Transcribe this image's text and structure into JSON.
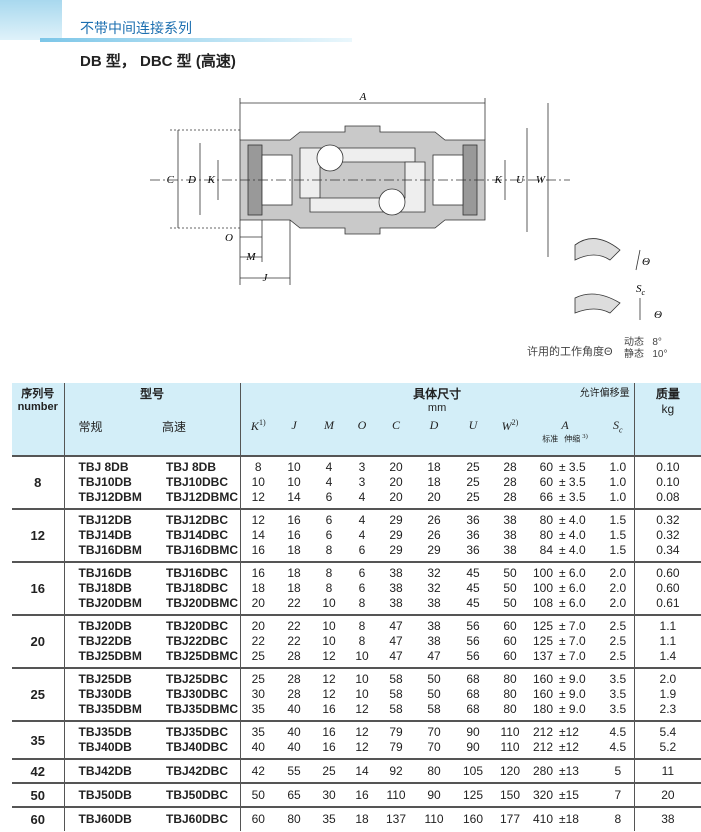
{
  "header": {
    "category": "不带中间连接系列",
    "title": "DB 型， DBC 型 (高速)"
  },
  "diagram": {
    "a": "A",
    "c": "C",
    "d": "D",
    "k_left": "K",
    "k_right": "K",
    "u": "U",
    "w": "W",
    "o": "O",
    "m": "M",
    "j": "J"
  },
  "angle": {
    "theta_1": "Θ",
    "theta_2": "Θ",
    "s": "S",
    "s_sub": "c",
    "caption": "许用的工作角度Θ",
    "dynamic": "动态",
    "dynamic_value": "8°",
    "static": "静态",
    "static_value": "10°"
  },
  "table": {
    "head": {
      "serial": "序列号",
      "serial_en": "number",
      "model": "型号",
      "regular": "常规",
      "high_speed": "高速",
      "dimensions": "具体尺寸",
      "unit": "mm",
      "allowance": "允许偏移量",
      "mass": "质量",
      "mass_unit": "kg",
      "k": "K",
      "k_note": "1)",
      "j": "J",
      "m": "M",
      "o": "O",
      "c": "C",
      "d": "D",
      "u": "U",
      "w": "W",
      "w_note": "2)",
      "a": "A",
      "a_standard": "标准",
      "a_stretch": "伸缩",
      "a_note": "3)",
      "s": "S",
      "s_sub": "c"
    },
    "groups": [
      {
        "number": "8",
        "rows": [
          [
            "TBJ  8DB",
            "TBJ  8DB",
            "8",
            "10",
            "4",
            "3",
            "20",
            "18",
            "25",
            "28",
            "60",
            "± 3.5",
            "1.0",
            "0.10"
          ],
          [
            "TBJ10DB",
            "TBJ10DBC",
            "10",
            "10",
            "4",
            "3",
            "20",
            "18",
            "25",
            "28",
            "60",
            "± 3.5",
            "1.0",
            "0.10"
          ],
          [
            "TBJ12DBM",
            "TBJ12DBMC",
            "12",
            "14",
            "6",
            "4",
            "20",
            "20",
            "25",
            "28",
            "66",
            "± 3.5",
            "1.0",
            "0.08"
          ]
        ]
      },
      {
        "number": "12",
        "rows": [
          [
            "TBJ12DB",
            "TBJ12DBC",
            "12",
            "16",
            "6",
            "4",
            "29",
            "26",
            "36",
            "38",
            "80",
            "± 4.0",
            "1.5",
            "0.32"
          ],
          [
            "TBJ14DB",
            "TBJ14DBC",
            "14",
            "16",
            "6",
            "4",
            "29",
            "26",
            "36",
            "38",
            "80",
            "± 4.0",
            "1.5",
            "0.32"
          ],
          [
            "TBJ16DBM",
            "TBJ16DBMC",
            "16",
            "18",
            "8",
            "6",
            "29",
            "29",
            "36",
            "38",
            "84",
            "± 4.0",
            "1.5",
            "0.34"
          ]
        ]
      },
      {
        "number": "16",
        "rows": [
          [
            "TBJ16DB",
            "TBJ16DBC",
            "16",
            "18",
            "8",
            "6",
            "38",
            "32",
            "45",
            "50",
            "100",
            "± 6.0",
            "2.0",
            "0.60"
          ],
          [
            "TBJ18DB",
            "TBJ18DBC",
            "18",
            "18",
            "8",
            "6",
            "38",
            "32",
            "45",
            "50",
            "100",
            "± 6.0",
            "2.0",
            "0.60"
          ],
          [
            "TBJ20DBM",
            "TBJ20DBMC",
            "20",
            "22",
            "10",
            "8",
            "38",
            "38",
            "45",
            "50",
            "108",
            "± 6.0",
            "2.0",
            "0.61"
          ]
        ]
      },
      {
        "number": "20",
        "rows": [
          [
            "TBJ20DB",
            "TBJ20DBC",
            "20",
            "22",
            "10",
            "8",
            "47",
            "38",
            "56",
            "60",
            "125",
            "± 7.0",
            "2.5",
            "1.1"
          ],
          [
            "TBJ22DB",
            "TBJ22DBC",
            "22",
            "22",
            "10",
            "8",
            "47",
            "38",
            "56",
            "60",
            "125",
            "± 7.0",
            "2.5",
            "1.1"
          ],
          [
            "TBJ25DBM",
            "TBJ25DBMC",
            "25",
            "28",
            "12",
            "10",
            "47",
            "47",
            "56",
            "60",
            "137",
            "± 7.0",
            "2.5",
            "1.4"
          ]
        ]
      },
      {
        "number": "25",
        "rows": [
          [
            "TBJ25DB",
            "TBJ25DBC",
            "25",
            "28",
            "12",
            "10",
            "58",
            "50",
            "68",
            "80",
            "160",
            "± 9.0",
            "3.5",
            "2.0"
          ],
          [
            "TBJ30DB",
            "TBJ30DBC",
            "30",
            "28",
            "12",
            "10",
            "58",
            "50",
            "68",
            "80",
            "160",
            "± 9.0",
            "3.5",
            "1.9"
          ],
          [
            "TBJ35DBM",
            "TBJ35DBMC",
            "35",
            "40",
            "16",
            "12",
            "58",
            "58",
            "68",
            "80",
            "180",
            "± 9.0",
            "3.5",
            "2.3"
          ]
        ]
      },
      {
        "number": "35",
        "rows": [
          [
            "TBJ35DB",
            "TBJ35DBC",
            "35",
            "40",
            "16",
            "12",
            "79",
            "70",
            "90",
            "110",
            "212",
            "±12",
            "4.5",
            "5.4"
          ],
          [
            "TBJ40DB",
            "TBJ40DBC",
            "40",
            "40",
            "16",
            "12",
            "79",
            "70",
            "90",
            "110",
            "212",
            "±12",
            "4.5",
            "5.2"
          ]
        ]
      },
      {
        "number": "42",
        "rows": [
          [
            "TBJ42DB",
            "TBJ42DBC",
            "42",
            "55",
            "25",
            "14",
            "92",
            "80",
            "105",
            "120",
            "280",
            "±13",
            "5",
            "11"
          ]
        ]
      },
      {
        "number": "50",
        "rows": [
          [
            "TBJ50DB",
            "TBJ50DBC",
            "50",
            "65",
            "30",
            "16",
            "110",
            "90",
            "125",
            "150",
            "320",
            "±15",
            "7",
            "20"
          ]
        ]
      },
      {
        "number": "60",
        "rows": [
          [
            "TBJ60DB",
            "TBJ60DBC",
            "60",
            "80",
            "35",
            "18",
            "137",
            "110",
            "160",
            "177",
            "410",
            "±18",
            "8",
            "38"
          ]
        ]
      }
    ]
  }
}
